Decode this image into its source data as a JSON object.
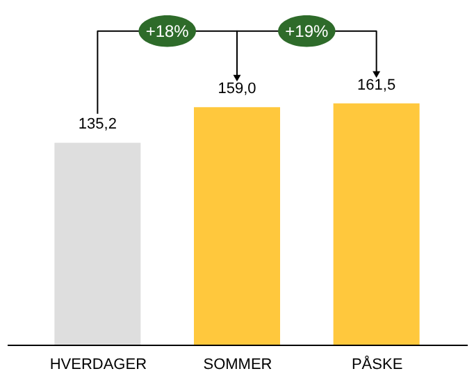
{
  "chart_data": {
    "type": "bar",
    "categories": [
      "HVERDAGER",
      "SOMMER",
      "PÅSKE"
    ],
    "values": [
      135.2,
      159.0,
      161.5
    ],
    "value_labels": [
      "135,2",
      "159,0",
      "161,5"
    ],
    "colors": [
      "#dedede",
      "#ffc83d",
      "#ffc83d"
    ],
    "annotations": [
      "+18%",
      "+19%"
    ]
  }
}
